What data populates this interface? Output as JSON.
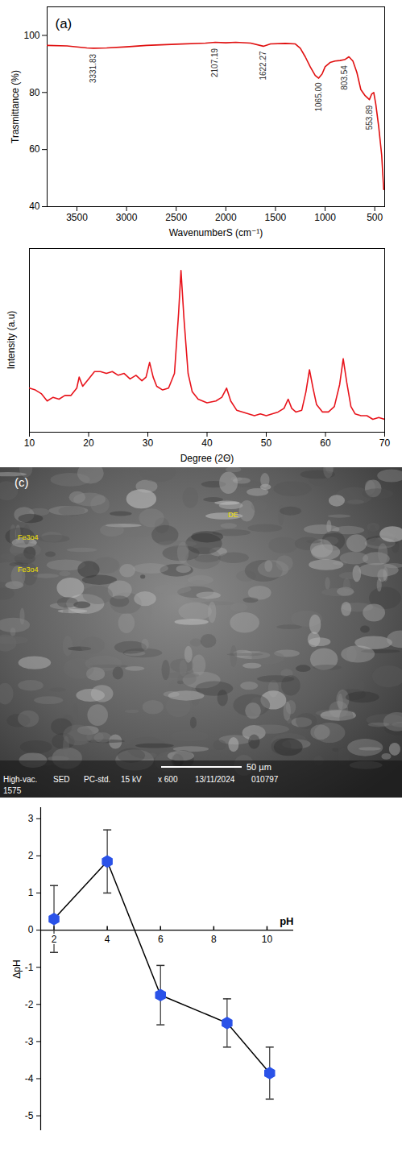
{
  "chart_data": [
    {
      "type": "line",
      "title": "(a)",
      "x_label": "WavenumberS (cm⁻¹)",
      "y_label": "Trasmittance (%)",
      "color": "#e01010",
      "x": [
        3800,
        3600,
        3400,
        3331.83,
        3200,
        3000,
        2800,
        2500,
        2200,
        2107.19,
        2000,
        1900,
        1750,
        1622.27,
        1550,
        1400,
        1300,
        1250,
        1200,
        1150,
        1100,
        1065,
        1030,
        1000,
        950,
        900,
        850,
        803.54,
        760,
        720,
        680,
        640,
        600,
        553.89,
        530,
        510,
        490,
        460,
        430,
        410
      ],
      "values": [
        96.5,
        96.3,
        95.6,
        95.5,
        95.6,
        96.0,
        96.5,
        96.9,
        97.3,
        97.6,
        97.4,
        97.6,
        97.3,
        96.2,
        97.0,
        97.2,
        97.0,
        95.5,
        92.5,
        89.0,
        86.0,
        85.0,
        86.5,
        89.0,
        90.5,
        91.0,
        91.2,
        91.5,
        92.5,
        91.0,
        87.0,
        81.0,
        79.0,
        77.5,
        79.5,
        80.0,
        76.0,
        68.0,
        58.0,
        46.0
      ],
      "xlim": [
        3800,
        400
      ],
      "xticks": [
        3500,
        3000,
        2500,
        2000,
        1500,
        1000,
        500
      ],
      "ylim": [
        40,
        110
      ],
      "yticks": [
        40,
        60,
        80,
        100
      ],
      "annotations": [
        {
          "x": 3331.83,
          "y": 93.5,
          "label": "3331.83"
        },
        {
          "x": 2107.19,
          "y": 95.5,
          "label": "2107.19"
        },
        {
          "x": 1622.27,
          "y": 94.5,
          "label": "1622.27"
        },
        {
          "x": 1065.0,
          "y": 83.5,
          "label": "1065.00"
        },
        {
          "x": 803.54,
          "y": 89.5,
          "label": "803.54"
        },
        {
          "x": 553.89,
          "y": 75.5,
          "label": "553.89"
        }
      ]
    },
    {
      "type": "line",
      "x_label": "Degree (2Θ)",
      "y_label": "Intensity (a.u)",
      "color": "#e8141c",
      "x": [
        10,
        11,
        12,
        13,
        14,
        15,
        16,
        17,
        18,
        18.4,
        19,
        20,
        21,
        22,
        23,
        24,
        25,
        26,
        27,
        28,
        29,
        29.7,
        30.3,
        30.9,
        31.5,
        32.5,
        33.5,
        34.5,
        35.2,
        35.6,
        36.1,
        36.8,
        37.5,
        38.5,
        40,
        41.5,
        42.5,
        43.3,
        44,
        45,
        46,
        47,
        48,
        49,
        50,
        51,
        52,
        53,
        53.7,
        54.3,
        55,
        56,
        56.7,
        57.3,
        57.9,
        58.5,
        59.5,
        60.5,
        61.5,
        62.4,
        63,
        63.6,
        64.3,
        65,
        66,
        67,
        68,
        69,
        70
      ],
      "values": [
        24,
        23,
        21,
        17,
        19,
        18,
        20,
        20,
        24,
        30,
        25,
        29,
        33,
        33,
        32,
        33,
        31,
        32,
        29,
        31,
        28,
        30,
        38,
        30,
        25,
        23,
        24,
        32,
        65,
        88,
        62,
        32,
        22,
        18,
        16,
        17,
        19,
        24,
        17,
        12,
        11,
        10,
        9,
        10,
        9,
        10,
        11,
        13,
        18,
        13,
        11,
        12,
        22,
        34,
        24,
        15,
        11,
        11,
        14,
        26,
        40,
        27,
        14,
        10,
        9,
        9,
        7,
        8,
        7
      ],
      "xlim": [
        10,
        70
      ],
      "xticks": [
        10,
        20,
        30,
        40,
        50,
        60,
        70
      ],
      "ylim": [
        0,
        100
      ],
      "tick_labels": "x"
    },
    {
      "type": "image",
      "title": "(c)",
      "labels": [
        "DE",
        "Fe3o4",
        "Fe3o4"
      ],
      "scale_bar": "50 µm",
      "caption": [
        "High-vac.",
        "SED",
        "PC-std.",
        "15 kV",
        "x 600",
        "13/11/2024",
        "010797",
        "1575"
      ]
    },
    {
      "type": "line",
      "x_label": "pH",
      "y_label": "ΔpH",
      "color": "#2a52e8",
      "marker": "hexagon",
      "x": [
        2,
        4,
        6,
        8.5,
        10.1
      ],
      "values": [
        0.3,
        1.85,
        -1.75,
        -2.5,
        -3.85
      ],
      "errors": [
        0.9,
        0.85,
        0.8,
        0.65,
        0.7
      ],
      "xlim": [
        1.5,
        11
      ],
      "xticks": [
        2,
        4,
        6,
        8,
        10
      ],
      "ylim": [
        -5.4,
        3.3
      ],
      "yticks": [
        -5,
        -4,
        -3,
        -2,
        -1,
        0,
        1,
        2,
        3
      ]
    }
  ]
}
